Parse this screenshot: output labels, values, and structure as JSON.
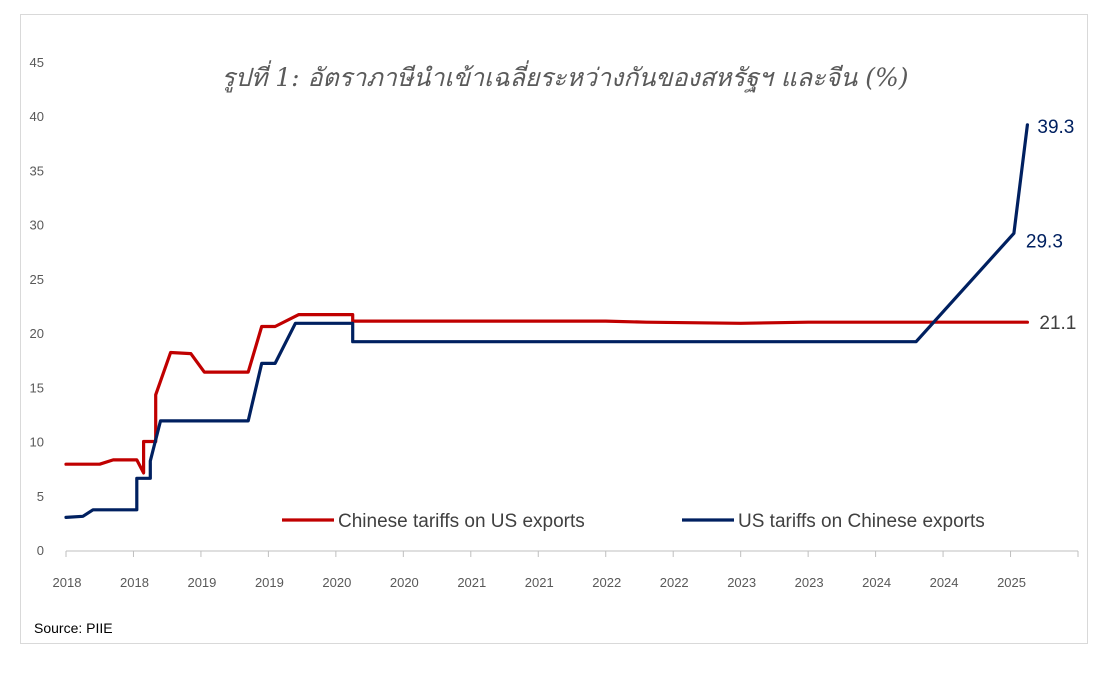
{
  "chart_data": {
    "type": "line",
    "title": "รูปที่ 1: อัตราภาษีนำเข้าเฉลี่ยระหว่างกันของสหรัฐฯ และจีน (%)",
    "source": "Source: PIIE",
    "ylim": [
      0,
      45
    ],
    "yticks": [
      0,
      5,
      10,
      15,
      20,
      25,
      30,
      35,
      40,
      45
    ],
    "x_tick_labels": [
      "2018",
      "2018",
      "2019",
      "2019",
      "2020",
      "2020",
      "2021",
      "2021",
      "2022",
      "2022",
      "2023",
      "2023",
      "2024",
      "2024",
      "2025"
    ],
    "x_range": [
      0,
      15
    ],
    "grid": false,
    "legend_position": "bottom",
    "series": [
      {
        "name": "Chinese tariffs on US exports",
        "color": "#c00000",
        "end_label": "21.1",
        "points": [
          [
            0.0,
            8.0
          ],
          [
            0.4,
            8.0
          ],
          [
            0.5,
            8.0
          ],
          [
            0.7,
            8.4
          ],
          [
            0.9,
            8.4
          ],
          [
            1.05,
            8.4
          ],
          [
            1.15,
            7.2
          ],
          [
            1.15,
            10.1
          ],
          [
            1.33,
            10.1
          ],
          [
            1.33,
            14.4
          ],
          [
            1.55,
            18.3
          ],
          [
            1.85,
            18.2
          ],
          [
            2.05,
            16.5
          ],
          [
            2.7,
            16.5
          ],
          [
            2.9,
            20.7
          ],
          [
            3.1,
            20.7
          ],
          [
            3.45,
            21.8
          ],
          [
            4.25,
            21.8
          ],
          [
            4.25,
            21.2
          ],
          [
            5.0,
            21.2
          ],
          [
            6.0,
            21.2
          ],
          [
            7.0,
            21.2
          ],
          [
            8.0,
            21.2
          ],
          [
            8.6,
            21.1
          ],
          [
            10.0,
            21.0
          ],
          [
            11.0,
            21.1
          ],
          [
            12.0,
            21.1
          ],
          [
            13.0,
            21.1
          ],
          [
            14.0,
            21.1
          ],
          [
            14.25,
            21.1
          ]
        ]
      },
      {
        "name": "US tariffs on Chinese exports",
        "color": "#002060",
        "end_label_upper": "39.3",
        "end_label_lower": "29.3",
        "points": [
          [
            0.0,
            3.1
          ],
          [
            0.25,
            3.2
          ],
          [
            0.4,
            3.8
          ],
          [
            1.05,
            3.8
          ],
          [
            1.05,
            6.7
          ],
          [
            1.25,
            6.7
          ],
          [
            1.25,
            8.3
          ],
          [
            1.4,
            12.0
          ],
          [
            2.7,
            12.0
          ],
          [
            2.9,
            17.3
          ],
          [
            3.1,
            17.3
          ],
          [
            3.4,
            21.0
          ],
          [
            4.25,
            21.0
          ],
          [
            4.25,
            19.3
          ],
          [
            6.0,
            19.3
          ],
          [
            8.0,
            19.3
          ],
          [
            10.0,
            19.3
          ],
          [
            12.6,
            19.3
          ],
          [
            14.05,
            29.3
          ],
          [
            14.25,
            39.3
          ]
        ]
      }
    ]
  }
}
